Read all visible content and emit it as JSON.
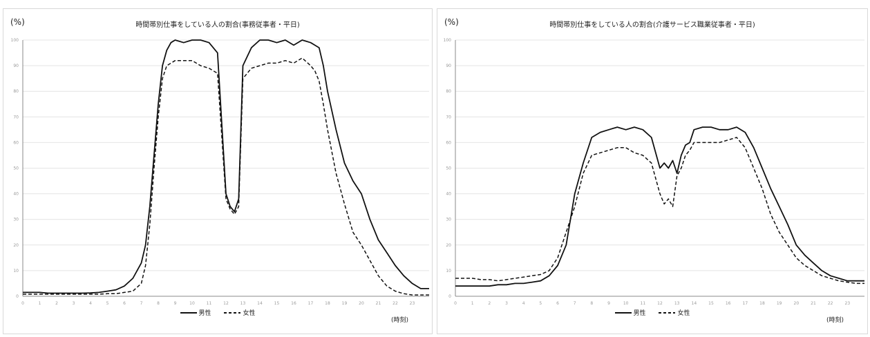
{
  "chart_data": [
    {
      "type": "line",
      "title": "時間帯別仕事をしている人の割合(事務従事者・平日)",
      "unit_label": "(%)",
      "xlabel": "(時刻)",
      "ylim": [
        0,
        100
      ],
      "y_ticks": [
        "0",
        "10",
        "20",
        "30",
        "40",
        "50",
        "60",
        "70",
        "80",
        "90",
        "100"
      ],
      "x_ticks": [
        "0",
        "1",
        "2",
        "3",
        "4",
        "5",
        "6",
        "7",
        "8",
        "9",
        "10",
        "11",
        "12",
        "13",
        "14",
        "15",
        "16",
        "17",
        "18",
        "19",
        "20",
        "21",
        "22",
        "23"
      ],
      "x": [
        0,
        0.5,
        1,
        1.5,
        2,
        2.5,
        3,
        3.5,
        4,
        4.5,
        5,
        5.5,
        6,
        6.5,
        7,
        7.25,
        7.5,
        7.75,
        8,
        8.25,
        8.5,
        8.75,
        9,
        9.5,
        10,
        10.5,
        11,
        11.5,
        12,
        12.25,
        12.5,
        12.75,
        13,
        13.5,
        14,
        14.5,
        15,
        15.5,
        16,
        16.5,
        17,
        17.25,
        17.5,
        17.75,
        18,
        18.5,
        19,
        19.5,
        20,
        20.5,
        21,
        21.5,
        22,
        22.5,
        23,
        23.5,
        24
      ],
      "series": [
        {
          "name": "男性",
          "style": "solid",
          "values": [
            1.5,
            1.5,
            1.5,
            1.2,
            1.2,
            1.2,
            1.2,
            1.2,
            1.3,
            1.5,
            2,
            2.5,
            4,
            7,
            13,
            20,
            35,
            55,
            75,
            90,
            96,
            99,
            100,
            99,
            100,
            100,
            99,
            95,
            40,
            35,
            33,
            38,
            90,
            97,
            100,
            100,
            99,
            100,
            98,
            100,
            99,
            98,
            97,
            90,
            80,
            65,
            52,
            45,
            40,
            30,
            22,
            17,
            12,
            8,
            5,
            3,
            3
          ]
        },
        {
          "name": "女性",
          "style": "dashed",
          "values": [
            0.8,
            0.8,
            0.8,
            0.8,
            0.8,
            0.8,
            0.8,
            0.8,
            0.8,
            0.8,
            1,
            1,
            1.5,
            2,
            5,
            12,
            28,
            50,
            70,
            85,
            90,
            91,
            92,
            92,
            92,
            90,
            89,
            87,
            38,
            34,
            32,
            35,
            85,
            89,
            90,
            91,
            91,
            92,
            91,
            93,
            90,
            88,
            84,
            75,
            65,
            48,
            36,
            25,
            20,
            14,
            8,
            4,
            2,
            1,
            0.5,
            0.5,
            0.5
          ]
        }
      ]
    },
    {
      "type": "line",
      "title": "時間帯別仕事をしている人の割合(介護サービス職業従事者・平日)",
      "unit_label": "(%)",
      "xlabel": "(時刻)",
      "ylim": [
        0,
        100
      ],
      "y_ticks": [
        "0",
        "10",
        "20",
        "30",
        "40",
        "50",
        "60",
        "70",
        "80",
        "90",
        "100"
      ],
      "x_ticks": [
        "0",
        "1",
        "2",
        "3",
        "4",
        "5",
        "6",
        "7",
        "8",
        "9",
        "10",
        "11",
        "12",
        "13",
        "14",
        "15",
        "16",
        "17",
        "18",
        "19",
        "20",
        "21",
        "22",
        "23"
      ],
      "x": [
        0,
        0.5,
        1,
        1.5,
        2,
        2.5,
        3,
        3.5,
        4,
        4.5,
        5,
        5.5,
        6,
        6.5,
        7,
        7.5,
        8,
        8.5,
        9,
        9.5,
        10,
        10.5,
        11,
        11.5,
        12,
        12.25,
        12.5,
        12.75,
        13,
        13.25,
        13.5,
        13.75,
        14,
        14.5,
        15,
        15.5,
        16,
        16.5,
        17,
        17.5,
        18,
        18.5,
        19,
        19.5,
        20,
        20.5,
        21,
        21.5,
        22,
        22.5,
        23,
        23.5,
        24
      ],
      "series": [
        {
          "name": "男性",
          "style": "solid",
          "values": [
            4,
            4,
            4,
            4,
            4,
            4.5,
            4.5,
            5,
            5,
            5.5,
            6,
            8,
            12,
            20,
            40,
            52,
            62,
            64,
            65,
            66,
            65,
            66,
            65,
            62,
            50,
            52,
            50,
            53,
            48,
            55,
            59,
            60,
            65,
            66,
            66,
            65,
            65,
            66,
            64,
            58,
            50,
            42,
            35,
            28,
            20,
            16,
            13,
            10,
            8,
            7,
            6,
            6,
            6
          ]
        },
        {
          "name": "女性",
          "style": "dashed",
          "values": [
            7,
            7,
            7,
            6.5,
            6.5,
            6,
            6.5,
            7,
            7.5,
            8,
            8.5,
            10,
            15,
            25,
            35,
            48,
            55,
            56,
            57,
            58,
            58,
            56,
            55,
            52,
            40,
            36,
            38,
            35,
            47,
            50,
            55,
            57,
            60,
            60,
            60,
            60,
            61,
            62,
            58,
            50,
            42,
            32,
            25,
            20,
            15,
            12,
            10,
            8,
            7,
            6,
            5.5,
            5,
            5
          ]
        }
      ]
    }
  ]
}
